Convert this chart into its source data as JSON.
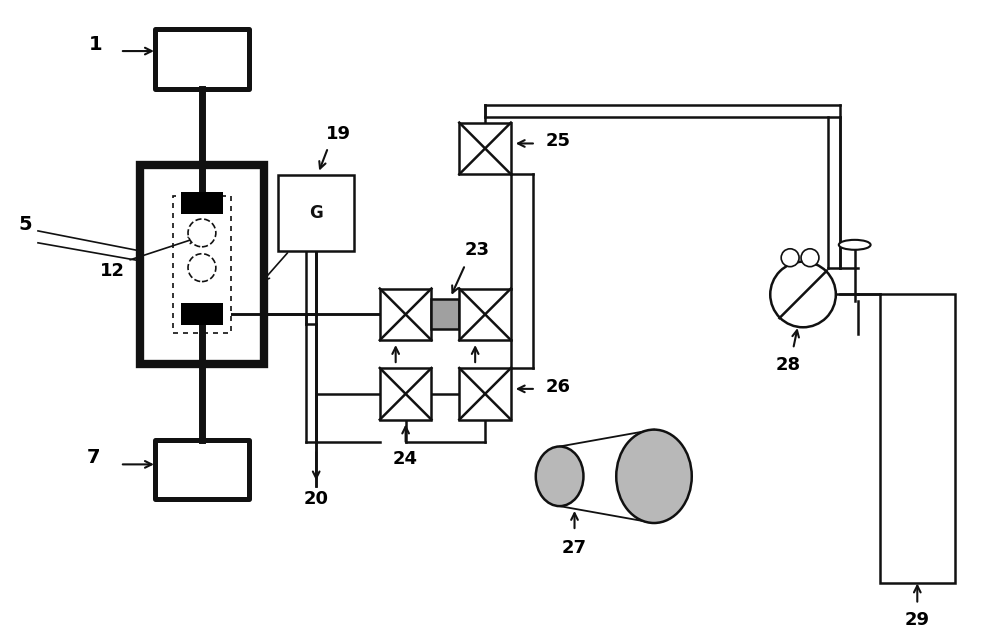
{
  "bg_color": "#ffffff",
  "line_color": "#111111",
  "lw": 1.8,
  "thick_lw": 6.0,
  "gray_fill": "#b8b8b8",
  "valve_size": 0.52
}
